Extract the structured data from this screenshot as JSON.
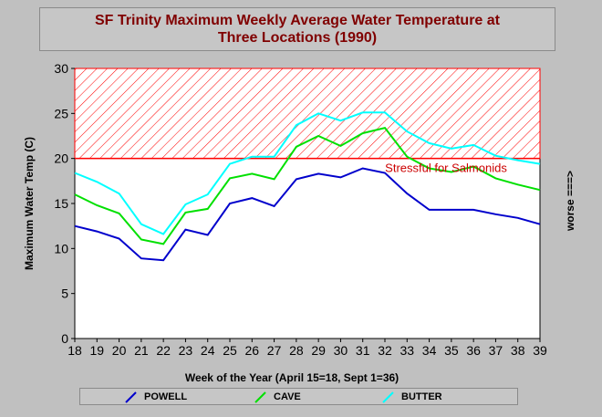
{
  "chart_data": {
    "type": "line",
    "title_lines": [
      "SF Trinity Maximum Weekly Average Water Temperature at",
      "Three Locations (1990)"
    ],
    "xlabel": "Week of the Year (April 15=18, Sept 1=36)",
    "ylabel": "Maximum Water Temp (C)",
    "right_label": "worse ===>",
    "x": [
      18,
      19,
      20,
      21,
      22,
      23,
      24,
      25,
      26,
      27,
      28,
      29,
      30,
      31,
      32,
      33,
      34,
      35,
      36,
      37,
      38,
      39
    ],
    "xlim": [
      18,
      39
    ],
    "ylim": [
      0,
      30
    ],
    "yticks": [
      0,
      5,
      10,
      15,
      20,
      25,
      30
    ],
    "grid": false,
    "legend_position": "bottom",
    "threshold": {
      "value": 20,
      "upper": 30,
      "label": "Stressful for Salmonids",
      "color": "#ff0000"
    },
    "series": [
      {
        "name": "POWELL",
        "color": "#0000cc",
        "values": [
          12.5,
          11.9,
          11.1,
          8.9,
          8.7,
          12.1,
          11.5,
          15.0,
          15.6,
          14.7,
          17.7,
          18.3,
          17.9,
          18.9,
          18.4,
          16.1,
          14.3,
          14.3,
          14.3,
          13.8,
          13.4,
          12.7
        ]
      },
      {
        "name": "CAVE",
        "color": "#00e000",
        "values": [
          16.0,
          14.8,
          13.9,
          11.0,
          10.5,
          14.0,
          14.4,
          17.8,
          18.3,
          17.7,
          21.3,
          22.5,
          21.4,
          22.8,
          23.4,
          20.2,
          18.9,
          18.5,
          19.1,
          17.8,
          17.1,
          16.5
        ]
      },
      {
        "name": "BUTTER",
        "color": "#00ffff",
        "values": [
          18.4,
          17.4,
          16.1,
          12.7,
          11.6,
          14.9,
          16.0,
          19.4,
          20.2,
          20.2,
          23.7,
          25.0,
          24.2,
          25.1,
          25.1,
          23.0,
          21.7,
          21.1,
          21.5,
          20.3,
          19.8,
          19.4
        ]
      }
    ]
  }
}
